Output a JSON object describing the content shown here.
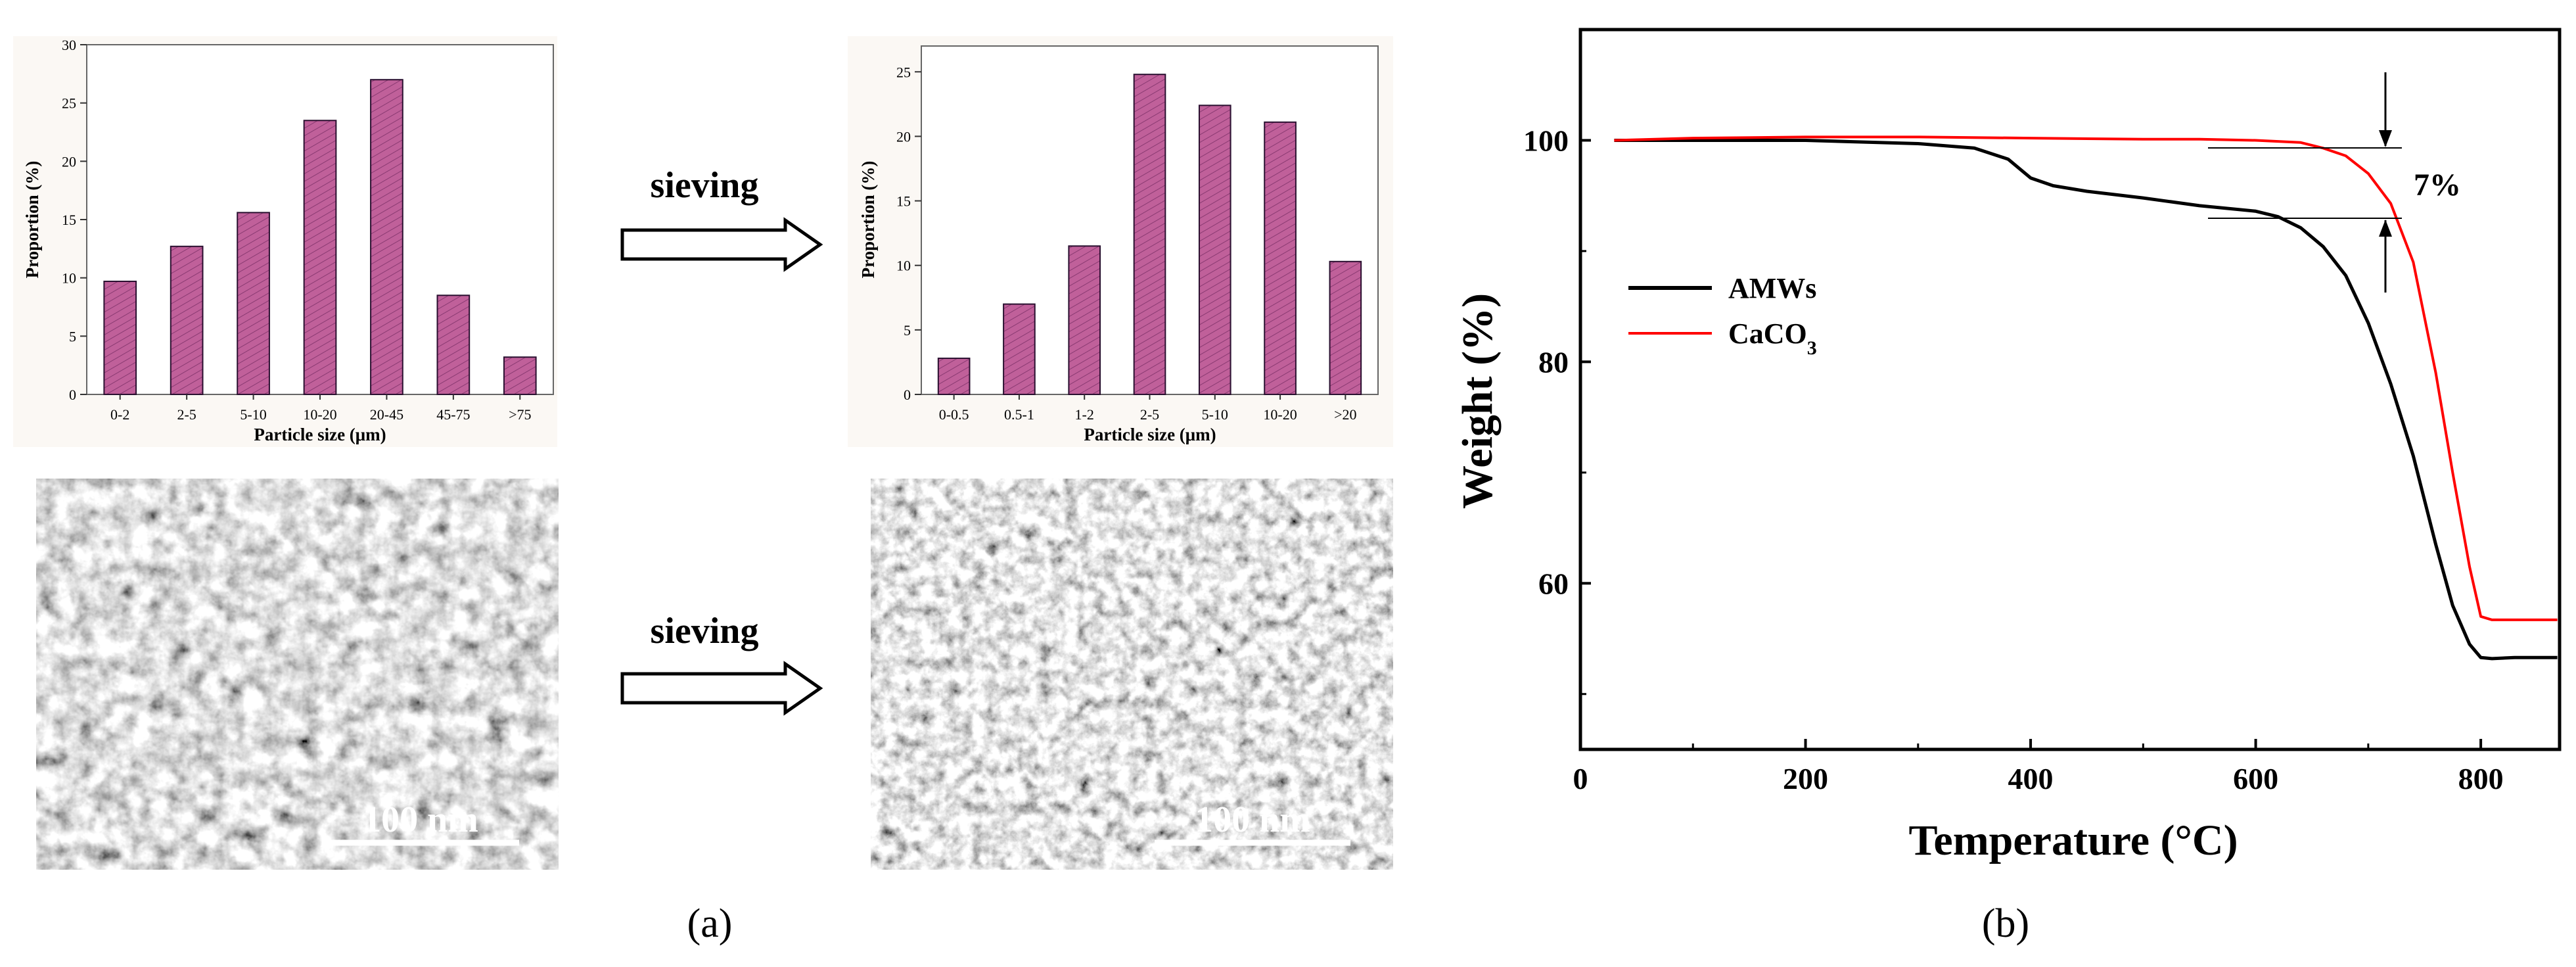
{
  "panel_a": {
    "caption": "(a)",
    "arrow_label_top": "sieving",
    "arrow_label_bottom": "sieving",
    "sem_left_scale_label": "100 nm",
    "sem_right_scale_label": "100 nm"
  },
  "panel_b": {
    "caption": "(b)"
  },
  "colors": {
    "bar_fill": "#c0609a",
    "bar_edge": "#2a1030",
    "amws": "#000000",
    "caco3": "#ff0000",
    "plot_bg": "#fbf8f4"
  },
  "chart_data": [
    {
      "id": "hist-before",
      "type": "bar",
      "title": "",
      "xlabel": "Particle size (μm)",
      "ylabel": "Proportion (%)",
      "categories": [
        "0-2",
        "2-5",
        "5-10",
        "10-20",
        "20-45",
        "45-75",
        ">75"
      ],
      "values": [
        9.7,
        12.7,
        15.6,
        23.5,
        27.0,
        8.5,
        3.2
      ],
      "ylim": [
        0,
        30
      ],
      "yticks": [
        "0",
        "5",
        "10",
        "15",
        "20",
        "25",
        "30"
      ],
      "grid": false
    },
    {
      "id": "hist-after",
      "type": "bar",
      "title": "",
      "xlabel": "Particle size (μm)",
      "ylabel": "Proportion (%)",
      "categories": [
        "0-0.5",
        "0.5-1",
        "1-2",
        "2-5",
        "5-10",
        "10-20",
        ">20"
      ],
      "values": [
        2.8,
        7.0,
        11.5,
        24.8,
        22.4,
        21.1,
        10.3
      ],
      "ylim": [
        0,
        27
      ],
      "yticks": [
        "0",
        "5",
        "10",
        "15",
        "20",
        "25"
      ],
      "grid": false
    },
    {
      "id": "tga",
      "type": "line",
      "title": "",
      "xlabel": "Temperature (°C)",
      "ylabel": "Weight (%)",
      "xlim": [
        0,
        870
      ],
      "ylim": [
        45,
        110
      ],
      "xticks": [
        "0",
        "200",
        "400",
        "600",
        "800"
      ],
      "yticks": [
        "60",
        "80",
        "100"
      ],
      "legend_position": "center-left",
      "annotation": "7%",
      "series": [
        {
          "name": "AMWs",
          "color": "#000000",
          "x": [
            30,
            100,
            200,
            300,
            350,
            380,
            400,
            420,
            450,
            500,
            550,
            600,
            620,
            640,
            660,
            680,
            700,
            720,
            740,
            760,
            775,
            790,
            800,
            810,
            830,
            868
          ],
          "y": [
            100.0,
            100.0,
            100.0,
            99.7,
            99.3,
            98.3,
            96.6,
            95.9,
            95.4,
            94.8,
            94.1,
            93.6,
            93.1,
            92.1,
            90.4,
            87.8,
            83.5,
            78.0,
            71.5,
            63.5,
            58.0,
            54.5,
            53.3,
            53.2,
            53.3,
            53.3
          ]
        },
        {
          "name": "CaCO3",
          "color": "#ff0000",
          "x": [
            30,
            100,
            200,
            300,
            400,
            500,
            550,
            600,
            640,
            660,
            680,
            700,
            720,
            740,
            760,
            775,
            790,
            800,
            810,
            830,
            868
          ],
          "y": [
            100.0,
            100.2,
            100.3,
            100.3,
            100.2,
            100.1,
            100.1,
            100.0,
            99.8,
            99.3,
            98.6,
            97.0,
            94.3,
            89.0,
            79.0,
            70.0,
            61.5,
            57.0,
            56.7,
            56.7,
            56.7
          ]
        }
      ]
    }
  ]
}
